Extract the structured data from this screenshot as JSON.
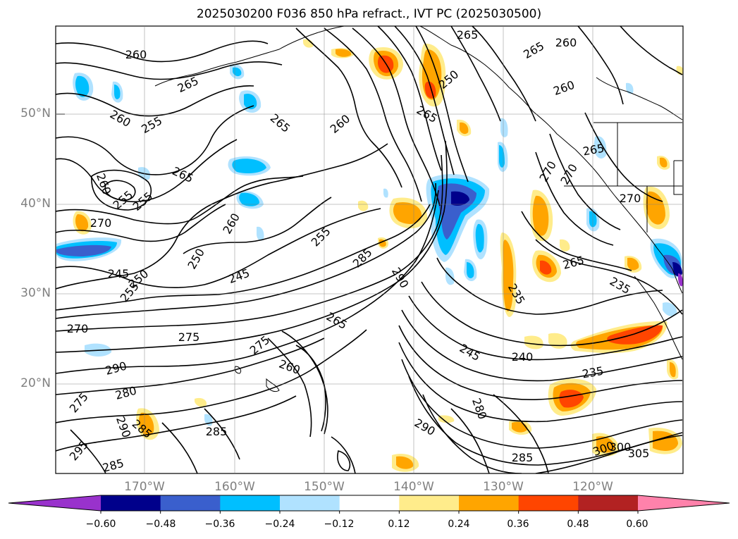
{
  "title": "2025030200 F036 850 hPa refract., IVT PC (2025030500)",
  "lat_labels": [
    "50°N",
    "40°N",
    "30°N",
    "20°N"
  ],
  "lon_labels": [
    "170°W",
    "160°W",
    "150°W",
    "140°W",
    "130°W",
    "120°W"
  ],
  "colorbar": {
    "colors": [
      "#9932cc",
      "#00008b",
      "#3a5fcd",
      "#00bfff",
      "#b0e2ff",
      "#ffffff",
      "#ffec8b",
      "#ffa500",
      "#ff4500",
      "#b22222",
      "#ff82ab"
    ],
    "ticks": [
      "−0.60",
      "−0.48",
      "−0.36",
      "−0.24",
      "−0.12",
      "0.12",
      "0.24",
      "0.36",
      "0.48",
      "0.60"
    ]
  },
  "contour_labels": [
    "260",
    "265",
    "255",
    "265",
    "260",
    "265",
    "250",
    "260",
    "265",
    "260",
    "265",
    "260",
    "255",
    "265",
    "260",
    "255",
    "270",
    "245",
    "250",
    "245",
    "255",
    "260",
    "250",
    "255",
    "285",
    "290",
    "270",
    "275",
    "275",
    "260",
    "290",
    "280",
    "275",
    "290",
    "285",
    "285",
    "295",
    "285",
    "265",
    "245",
    "240",
    "235",
    "280",
    "290",
    "285",
    "235",
    "265",
    "270",
    "270",
    "235",
    "300",
    "300",
    "305",
    "265",
    "270"
  ]
}
